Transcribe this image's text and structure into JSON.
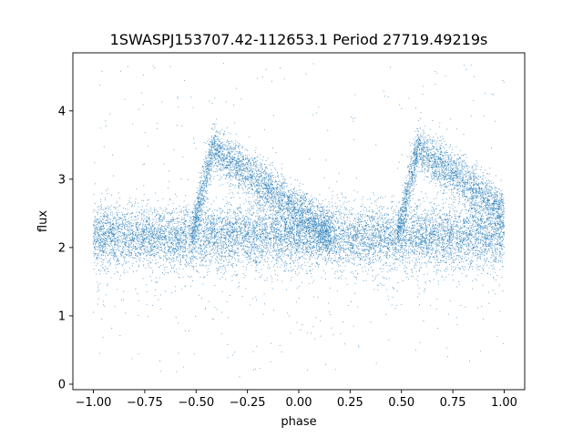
{
  "chart_data": {
    "type": "scatter",
    "title": "1SWASPJ153707.42-112653.1 Period 27719.49219s",
    "xlabel": "phase",
    "ylabel": "flux",
    "xlim": [
      -1.1,
      1.1
    ],
    "ylim": [
      -0.08,
      4.85
    ],
    "x_ticks": [
      {
        "value": -1.0,
        "label": "−1.00"
      },
      {
        "value": -0.75,
        "label": "−0.75"
      },
      {
        "value": -0.5,
        "label": "−0.50"
      },
      {
        "value": -0.25,
        "label": "−0.25"
      },
      {
        "value": 0.0,
        "label": "0.00"
      },
      {
        "value": 0.25,
        "label": "0.25"
      },
      {
        "value": 0.5,
        "label": "0.50"
      },
      {
        "value": 0.75,
        "label": "0.75"
      },
      {
        "value": 1.0,
        "label": "1.00"
      }
    ],
    "y_ticks": [
      {
        "value": 0,
        "label": "0"
      },
      {
        "value": 1,
        "label": "1"
      },
      {
        "value": 2,
        "label": "2"
      },
      {
        "value": 3,
        "label": "3"
      },
      {
        "value": 4,
        "label": "4"
      }
    ],
    "grid": false,
    "point_color": "#1f77b4",
    "series": [
      {
        "description_note": "",
        "phase_range": [
          -1.0,
          1.0
        ],
        "baseline_flux": 2.18,
        "baseline_spread": 0.22,
        "bump_peak_phase": [
          -0.42,
          0.58
        ],
        "bump_peak_flux": 3.45,
        "outlier_range": [
          0.1,
          4.7
        ]
      }
    ]
  }
}
